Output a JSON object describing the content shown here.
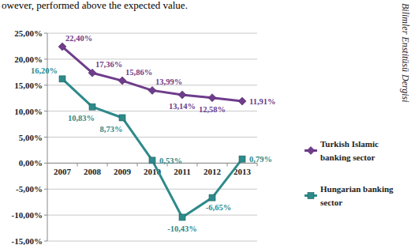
{
  "chart_data": {
    "type": "line",
    "annotations": [
      "owever, performed above the expected value.",
      "Bilimler Enstitüsü Dergisi"
    ],
    "categories": [
      "2007",
      "2008",
      "2009",
      "2010",
      "2011",
      "2012",
      "2013"
    ],
    "series": [
      {
        "name": "Turkish Islamic banking sector",
        "color": "#6f3d8c",
        "marker": "diamond",
        "values": [
          22.4,
          17.36,
          15.86,
          13.99,
          13.14,
          12.58,
          11.91
        ],
        "value_labels": [
          "22,40%",
          "17,36%",
          "15,86%",
          "13,99%",
          "13,14%",
          "12,58%",
          "11,91%"
        ]
      },
      {
        "name": "Hungarian banking sector",
        "color": "#2e8a8a",
        "marker": "square",
        "values": [
          16.2,
          10.83,
          8.73,
          0.53,
          -10.43,
          -6.65,
          0.79
        ],
        "value_labels": [
          "16,20%",
          "10,83%",
          "8,73%",
          "0,53%",
          "-10,43%",
          "-6,65%",
          "0,79%"
        ]
      }
    ],
    "ylim": [
      -15,
      25
    ],
    "yticks": [
      {
        "value": -15,
        "label": "-15,00%"
      },
      {
        "value": -10,
        "label": "-10,00%"
      },
      {
        "value": -5,
        "label": "-5,00%"
      },
      {
        "value": 0,
        "label": "0,00%"
      },
      {
        "value": 5,
        "label": "5,00%"
      },
      {
        "value": 10,
        "label": "10,00%"
      },
      {
        "value": 15,
        "label": "15,00%"
      },
      {
        "value": 20,
        "label": "20,00%"
      },
      {
        "value": 25,
        "label": "25,00%"
      }
    ],
    "grid": true,
    "data_labels": true,
    "legend": "right"
  }
}
